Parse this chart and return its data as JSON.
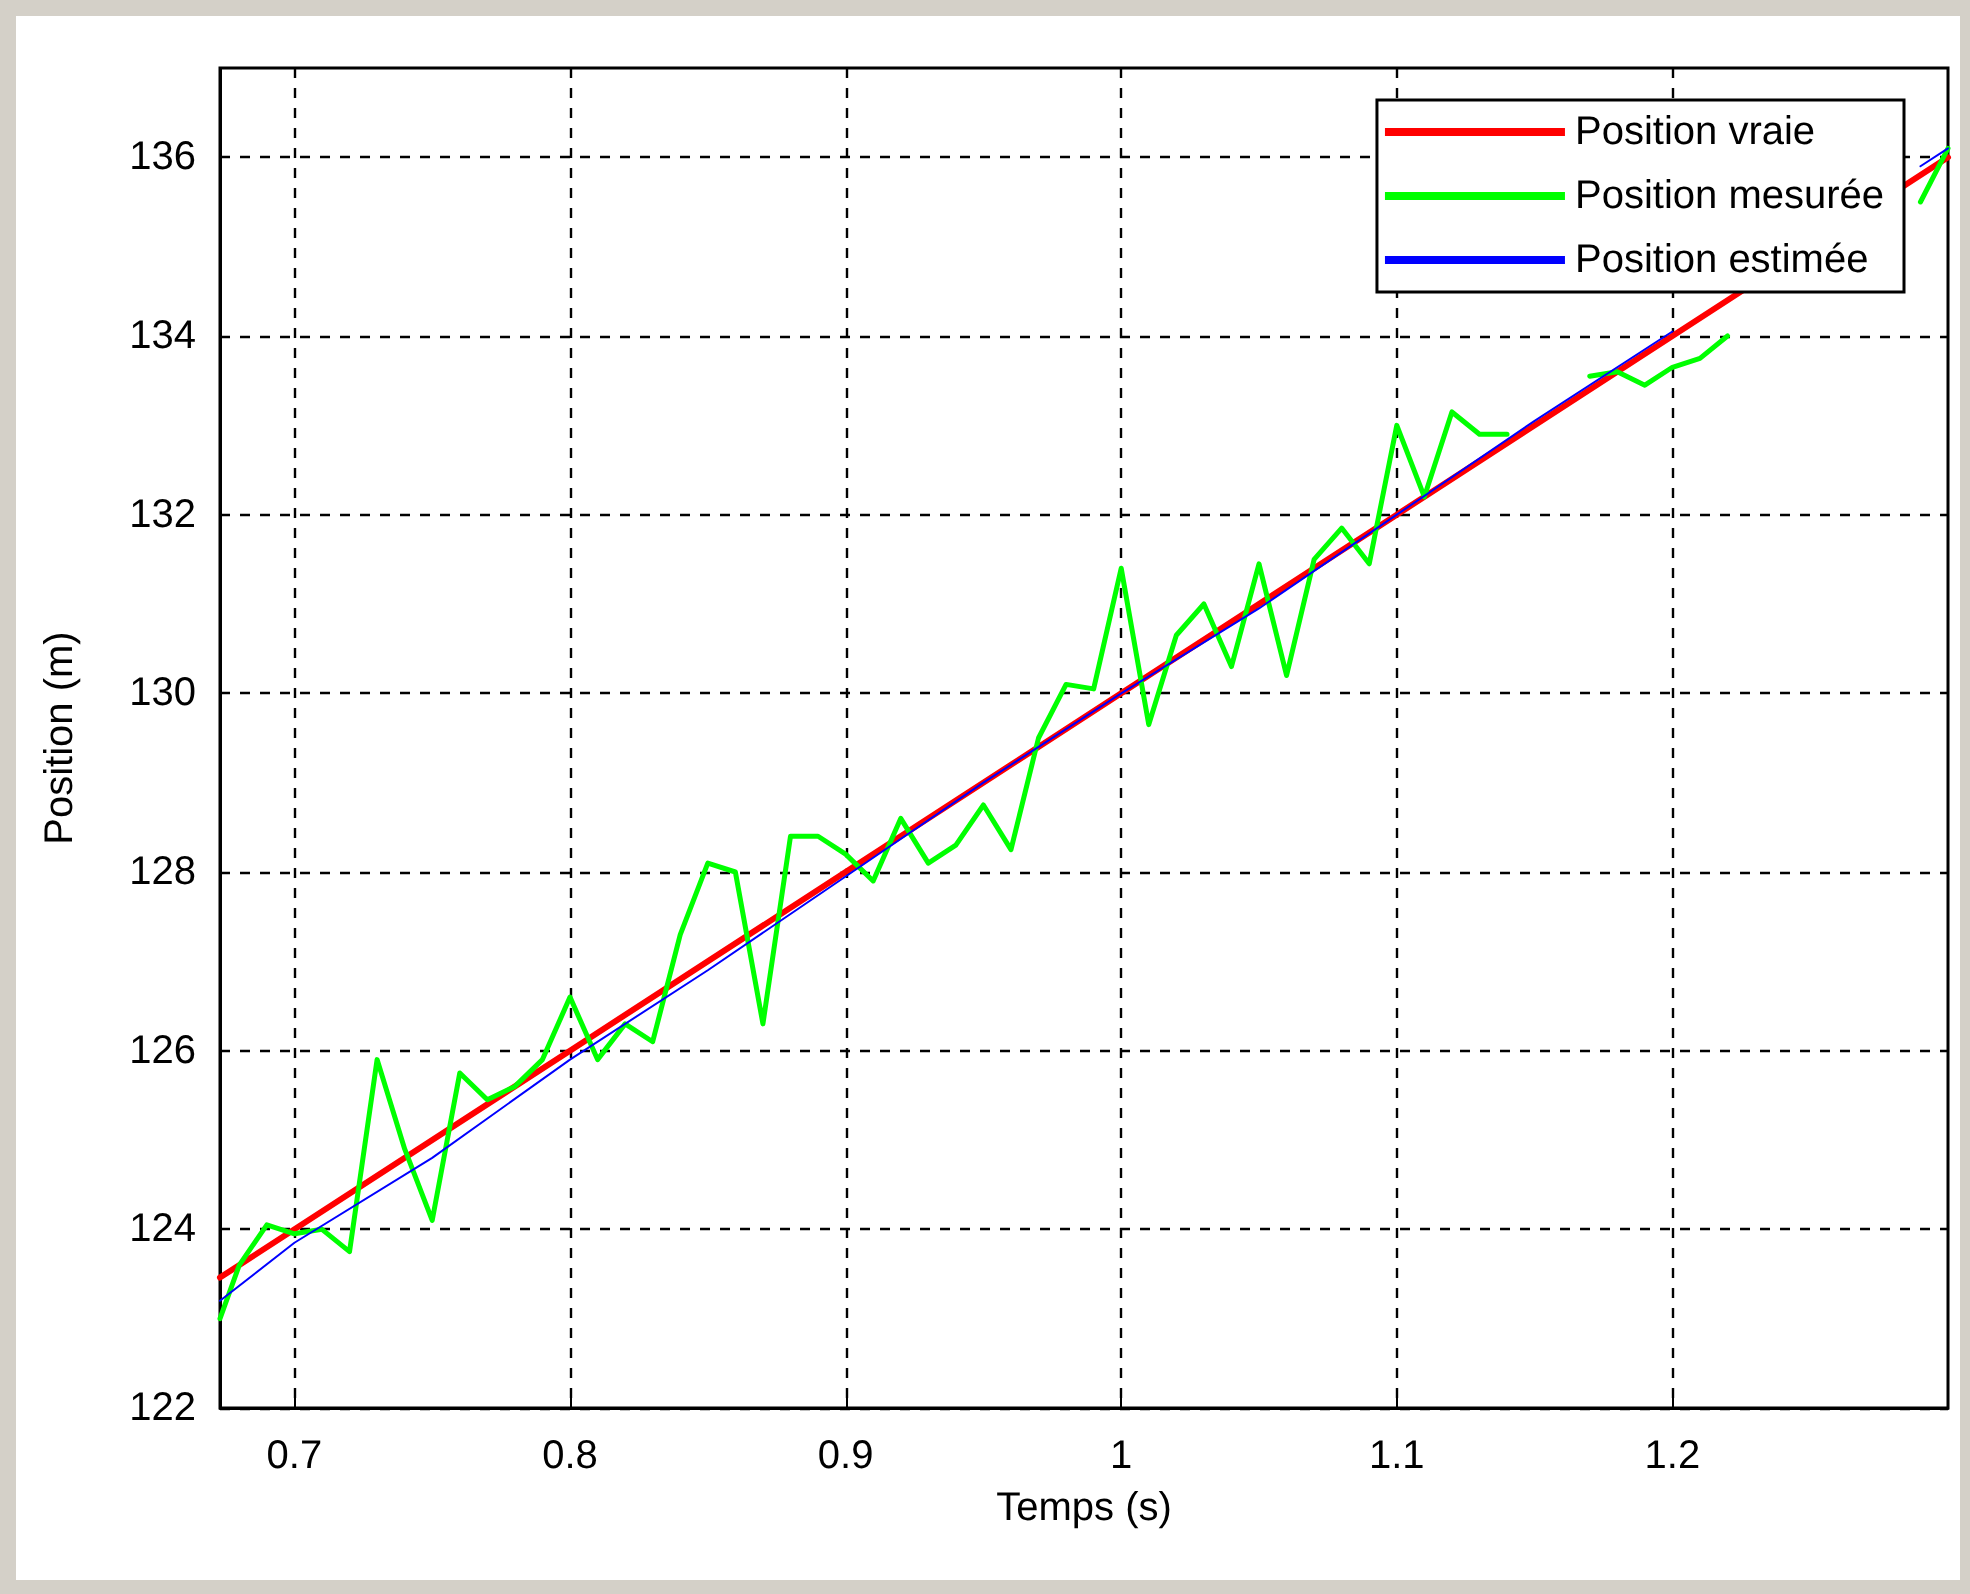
{
  "chart_data": {
    "type": "line",
    "xlabel": "Temps (s)",
    "ylabel": "Position (m)",
    "xlim": [
      0.673,
      1.3
    ],
    "ylim": [
      122,
      137
    ],
    "xticks": [
      0.7,
      0.8,
      0.9,
      1,
      1.1,
      1.2
    ],
    "yticks": [
      122,
      124,
      126,
      128,
      130,
      132,
      134,
      136
    ],
    "grid": true,
    "legend": "top right",
    "marker": "none",
    "line_style": "solid",
    "series": [
      {
        "name": "Position vraie",
        "color": "#ff0000",
        "x": [
          0.673,
          0.8,
          0.9,
          1,
          1.1,
          1.2,
          1.3
        ],
        "values": [
          123.46,
          126.0,
          128.0,
          130.0,
          132.0,
          134.0,
          136.0
        ]
      },
      {
        "name": "Position mesurée",
        "color": "#00ff00",
        "x": [
          0.673,
          0.68,
          0.69,
          0.7,
          0.71,
          0.72,
          0.73,
          0.74,
          0.75,
          0.76,
          0.77,
          0.78,
          0.79,
          0.8,
          0.81,
          0.82,
          0.83,
          0.84,
          0.85,
          0.86,
          0.87,
          0.88,
          0.89,
          0.9,
          0.91,
          0.92,
          0.93,
          0.94,
          0.95,
          0.96,
          0.97,
          0.98,
          0.99,
          1,
          1.01,
          1.02,
          1.03,
          1.04,
          1.05,
          1.06,
          1.07,
          1.08,
          1.09,
          1.1,
          1.11,
          1.12,
          1.13,
          1.14,
          1.15,
          1.16,
          1.17,
          1.18,
          1.19,
          1.2,
          1.21,
          1.22,
          1.23,
          1.24,
          1.25,
          1.26,
          1.27,
          1.28,
          1.29,
          1.3
        ],
        "values": [
          123.0,
          123.6,
          124.05,
          123.95,
          124.0,
          123.75,
          125.9,
          124.9,
          124.1,
          125.75,
          125.45,
          125.6,
          125.9,
          126.6,
          125.9,
          126.3,
          126.1,
          127.3,
          128.1,
          128.0,
          126.3,
          128.4,
          128.4,
          128.2,
          127.9,
          128.6,
          128.1,
          128.3,
          128.75,
          128.25,
          129.5,
          130.1,
          130.05,
          131.4,
          129.65,
          130.65,
          131.0,
          130.3,
          131.45,
          130.2,
          131.5,
          131.85,
          131.45,
          133.0,
          132.2,
          133.15,
          132.9,
          132.9,
          null,
          null,
          133.55,
          133.6,
          133.45,
          133.65,
          133.75,
          134.0,
          null,
          null,
          null,
          null,
          null,
          null,
          135.5,
          136.1
        ]
      },
      {
        "name": "Position estimée",
        "color": "#0000ff",
        "x": [
          0.673,
          0.7,
          0.75,
          0.8,
          0.85,
          0.9,
          0.95,
          1,
          1.05,
          1.1,
          1.15,
          1.2,
          1.25,
          1.29,
          1.3
        ],
        "values": [
          123.2,
          123.85,
          124.8,
          125.9,
          126.9,
          127.95,
          129.0,
          130.0,
          130.95,
          132.0,
          133.05,
          134.05,
          null,
          135.9,
          136.1
        ]
      }
    ]
  }
}
